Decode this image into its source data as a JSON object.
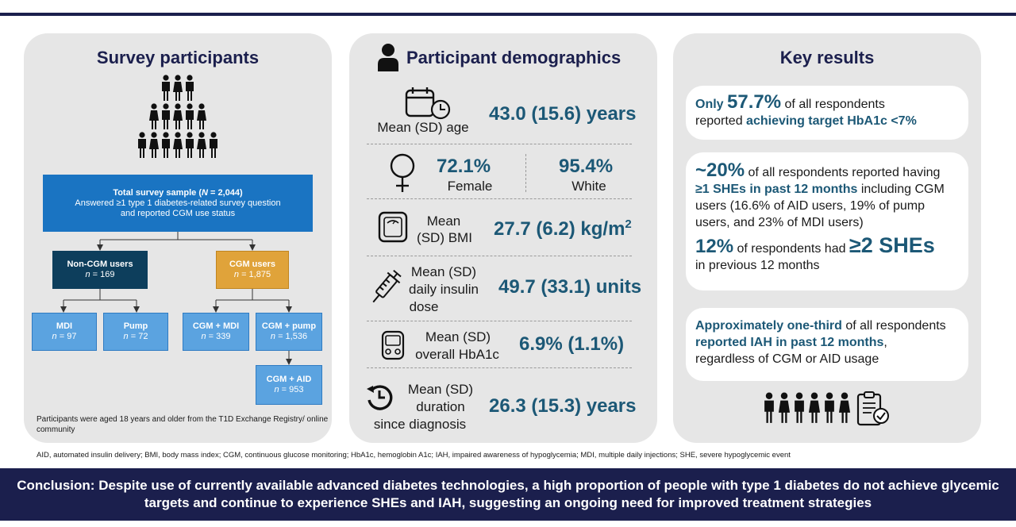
{
  "survey": {
    "title": "Survey participants",
    "total": {
      "title_pre": "Total survey sample (",
      "title_n": "N",
      "title_post": " = 2,044)",
      "line2": "Answered ≥1 type 1 diabetes-related survey question",
      "line3": "and reported CGM use status"
    },
    "noncgm": {
      "label": "Non-CGM users",
      "n": "n",
      "count": " = 169"
    },
    "cgm": {
      "label": "CGM users",
      "n": "n",
      "count": " = 1,875"
    },
    "mdi": {
      "label": "MDI",
      "n": "n",
      "count": " = 97"
    },
    "pump": {
      "label": "Pump",
      "n": "n",
      "count": " = 72"
    },
    "cgm_mdi": {
      "label": "CGM + MDI",
      "n": "n",
      "count": " = 339"
    },
    "cgm_pump": {
      "label": "CGM + pump",
      "n": "n",
      "count": " = 1,536"
    },
    "cgm_aid": {
      "label": "CGM + AID",
      "n": "n",
      "count": " = 953"
    },
    "footnote": "Participants were aged 18 years and older from the T1D Exchange Registry/ online community",
    "pyramid_rows": [
      3,
      5,
      7
    ]
  },
  "demographics": {
    "title": "Participant demographics",
    "age": {
      "label": "Mean (SD) age",
      "value": "43.0 (15.6) years"
    },
    "female": {
      "value": "72.1%",
      "label": "Female"
    },
    "white": {
      "value": "95.4%",
      "label": "White"
    },
    "bmi": {
      "label_1": "Mean",
      "label_2": "(SD) BMI",
      "value": "27.7 (6.2) kg/m",
      "sup": "2"
    },
    "insulin": {
      "label_1": "Mean (SD)",
      "label_2": "daily insulin",
      "label_3": "dose",
      "value": "49.7 (33.1) units"
    },
    "hba1c": {
      "label_1": "Mean (SD)",
      "label_2": "overall HbA1c",
      "value": "6.9% (1.1%)"
    },
    "duration": {
      "label_1": "Mean (SD)",
      "label_2": "duration",
      "label_3": "since diagnosis",
      "value": "26.3 (15.3) years"
    }
  },
  "key_results": {
    "title": "Key results",
    "card1": {
      "t1": "Only ",
      "big": "57.7%",
      "t2": " of all respondents",
      "t3": "reported ",
      "hl": "achieving target HbA1c <7%"
    },
    "card2": {
      "big1": "~20%",
      "t1": " of all respondents reported having",
      "hl1": "≥1 SHEs in past 12 months",
      "t2": " including CGM users (16.6% of AID users, 19% of pump users, and 23% of MDI users)",
      "big2": "12%",
      "t3": " of respondents had ",
      "big3": "≥2 SHEs",
      "t4": "in previous 12 months"
    },
    "card3": {
      "hl1": "Approximately one-third",
      "t1": " of all respondents",
      "hl2": "reported IAH in past 12 months",
      "t2": ",",
      "t3": "regardless of CGM or AID usage"
    }
  },
  "abbreviations": "AID, automated insulin delivery; BMI, body mass index; CGM, continuous glucose monitoring; HbA1c, hemoglobin A1c; IAH, impaired awareness of hypoglycemia; MDI, multiple daily injections; SHE, severe hypoglycemic event",
  "conclusion": {
    "label": "Conclusion:",
    "text": " Despite use of currently available advanced diabetes technologies, a high proportion of people with type 1 diabetes do not achieve glycemic targets and continue to experience SHEs and IAH, suggesting an ongoing need for improved treatment strategies"
  },
  "colors": {
    "navy": "#1b1f4d",
    "teal": "#1c5876",
    "blue": "#1a74c2",
    "light_blue": "#5ba3e0",
    "orange": "#e0a33a",
    "dark_teal": "#0d3e5c",
    "panel": "#e6e6e6"
  },
  "icons": [
    "person-icon",
    "calendar-clock-icon",
    "female-symbol-icon",
    "scale-icon",
    "syringe-icon",
    "glucose-meter-icon",
    "clock-arrow-icon",
    "clipboard-check-icon"
  ]
}
